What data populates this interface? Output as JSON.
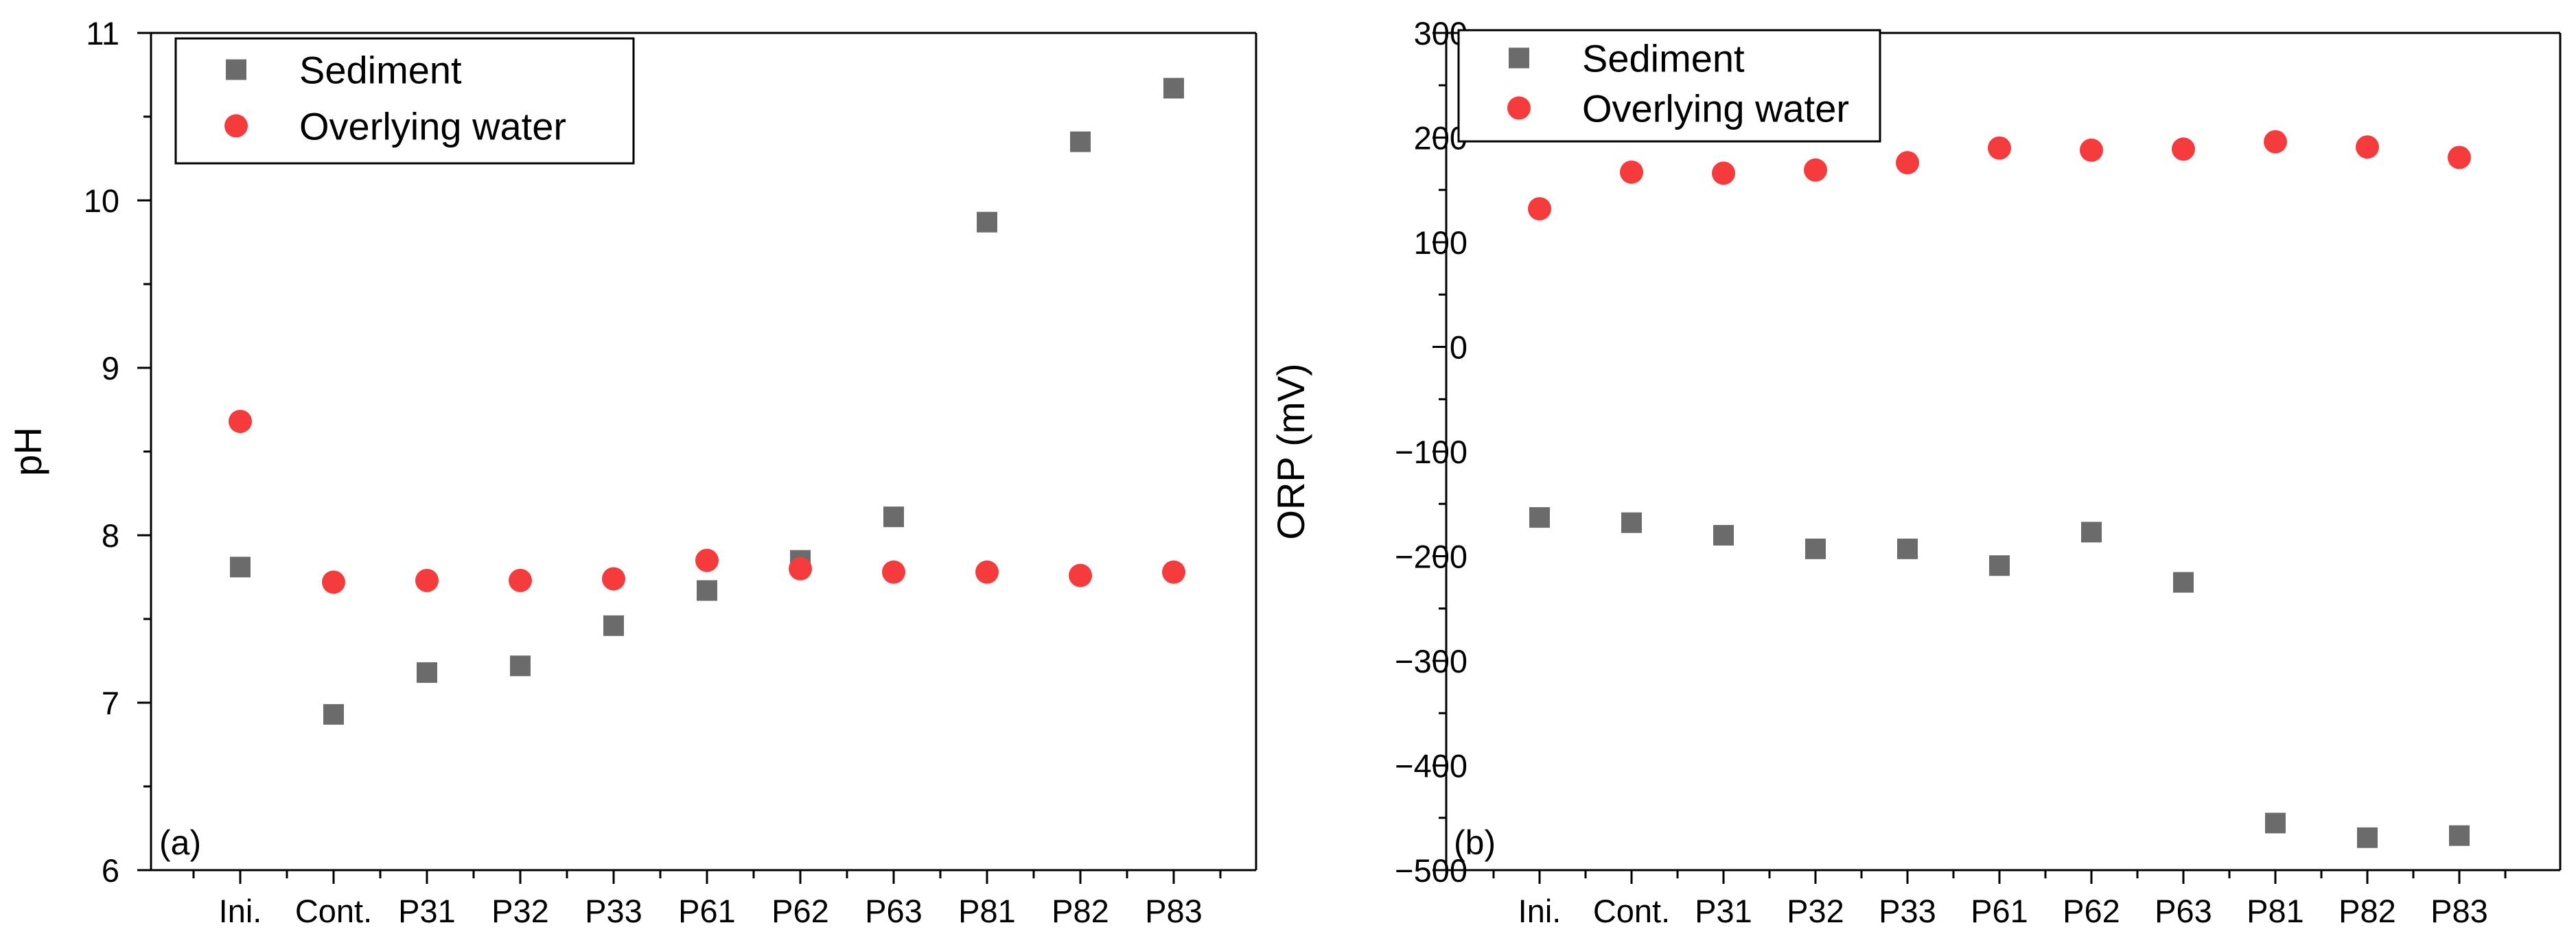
{
  "chart_data": [
    {
      "type": "scatter",
      "panel_label": "(a)",
      "ylabel": "pH",
      "xlabel": "",
      "ylim": [
        6,
        11
      ],
      "yticks": [
        6,
        7,
        8,
        9,
        10,
        11
      ],
      "categories": [
        "Ini.",
        "Cont.",
        "P31",
        "P32",
        "P33",
        "P61",
        "P62",
        "P63",
        "P81",
        "P82",
        "P83"
      ],
      "legend_position": "top-left",
      "series": [
        {
          "name": "Sediment",
          "marker": "square",
          "color": "#6b6b6b",
          "values": [
            7.81,
            6.93,
            7.18,
            7.22,
            7.46,
            7.67,
            7.85,
            8.11,
            9.87,
            10.35,
            10.67
          ]
        },
        {
          "name": "Overlying water",
          "marker": "circle",
          "color": "#f53b3b",
          "values": [
            8.68,
            7.72,
            7.73,
            7.73,
            7.74,
            7.85,
            7.8,
            7.78,
            7.78,
            7.76,
            7.78
          ]
        }
      ]
    },
    {
      "type": "scatter",
      "panel_label": "(b)",
      "ylabel": "ORP (mV)",
      "xlabel": "",
      "ylim": [
        -500,
        300
      ],
      "yticks": [
        -500,
        -400,
        -300,
        -200,
        -100,
        0,
        100,
        200,
        300
      ],
      "ytick_labels": [
        "−500",
        "−400",
        "−300",
        "−200",
        "−100",
        "0",
        "100",
        "200",
        "300"
      ],
      "categories": [
        "Ini.",
        "Cont.",
        "P31",
        "P32",
        "P33",
        "P61",
        "P62",
        "P63",
        "P81",
        "P82",
        "P83"
      ],
      "legend_position": "top-left",
      "series": [
        {
          "name": "Sediment",
          "marker": "square",
          "color": "#6b6b6b",
          "values": [
            -163,
            -168,
            -180,
            -193,
            -193,
            -209,
            -177,
            -225,
            -455,
            -469,
            -467
          ]
        },
        {
          "name": "Overlying water",
          "marker": "circle",
          "color": "#f53b3b",
          "values": [
            132,
            167,
            166,
            169,
            176,
            190,
            188,
            189,
            196,
            191,
            181
          ]
        }
      ]
    }
  ]
}
